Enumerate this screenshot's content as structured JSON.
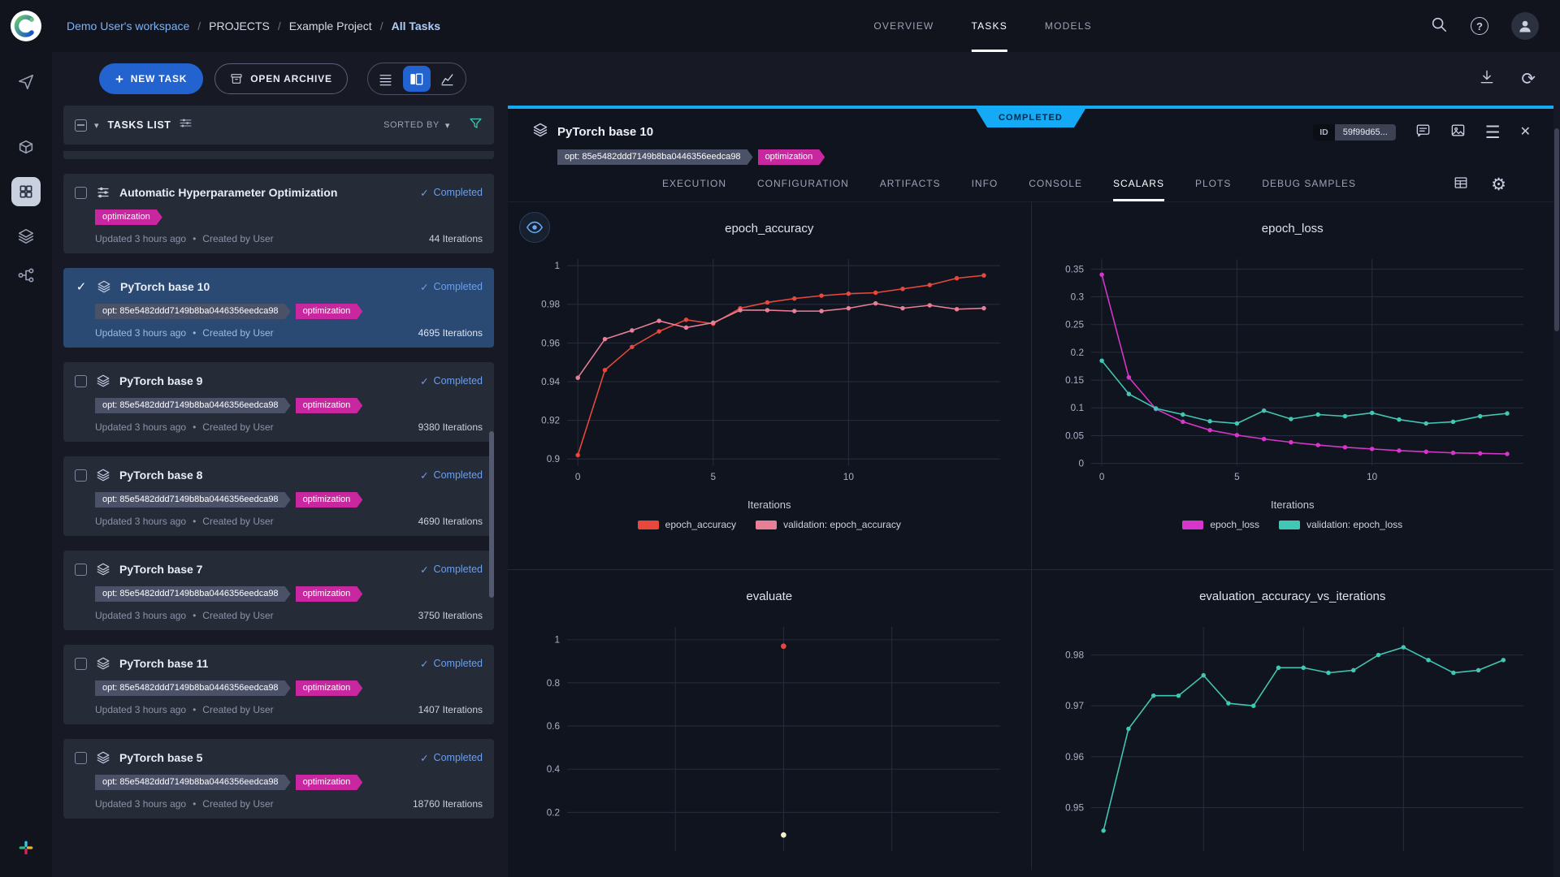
{
  "colors": {
    "accent_blue": "#14aaf5",
    "button_blue": "#2263cf",
    "tag_magenta": "#c9279f",
    "tag_gray": "#4b5166",
    "status_blue": "#6d9ee8",
    "selected_card_bg": "#2a4a74"
  },
  "icons": {
    "plus": "+",
    "caret_down": "▾",
    "check": "✓",
    "bullet": "•",
    "close": "✕",
    "menu": "☰",
    "gear": "⚙",
    "refresh": "⟳",
    "help": "?"
  },
  "topbar": {
    "breadcrumbs": [
      "Demo User's workspace",
      "PROJECTS",
      "Example Project",
      "All Tasks"
    ],
    "tabs": [
      {
        "label": "OVERVIEW",
        "active": false
      },
      {
        "label": "TASKS",
        "active": true
      },
      {
        "label": "MODELS",
        "active": false
      }
    ]
  },
  "toolbar": {
    "new_task": "NEW TASK",
    "open_archive": "OPEN ARCHIVE"
  },
  "tasks_panel": {
    "title": "TASKS LIST",
    "sorted_by": "SORTED BY",
    "tasks": [
      {
        "icon": "tune",
        "title": "Automatic Hyperparameter Optimization",
        "status": "Completed",
        "selected": false,
        "tags": [
          {
            "label": "optimization",
            "color": "#c9279f"
          }
        ],
        "updated": "Updated 3 hours ago",
        "created": "Created by User",
        "iterations": "44 Iterations"
      },
      {
        "icon": "layers",
        "title": "PyTorch base 10",
        "status": "Completed",
        "selected": true,
        "tags": [
          {
            "label": "opt: 85e5482ddd7149b8ba0446356eedca98",
            "color": "#4b5166"
          },
          {
            "label": "optimization",
            "color": "#c9279f"
          }
        ],
        "updated": "Updated 3 hours ago",
        "created": "Created by User",
        "iterations": "4695 Iterations"
      },
      {
        "icon": "layers",
        "title": "PyTorch base 9",
        "status": "Completed",
        "selected": false,
        "tags": [
          {
            "label": "opt: 85e5482ddd7149b8ba0446356eedca98",
            "color": "#4b5166"
          },
          {
            "label": "optimization",
            "color": "#c9279f"
          }
        ],
        "updated": "Updated 3 hours ago",
        "created": "Created by User",
        "iterations": "9380 Iterations"
      },
      {
        "icon": "layers",
        "title": "PyTorch base 8",
        "status": "Completed",
        "selected": false,
        "tags": [
          {
            "label": "opt: 85e5482ddd7149b8ba0446356eedca98",
            "color": "#4b5166"
          },
          {
            "label": "optimization",
            "color": "#c9279f"
          }
        ],
        "updated": "Updated 3 hours ago",
        "created": "Created by User",
        "iterations": "4690 Iterations"
      },
      {
        "icon": "layers",
        "title": "PyTorch base 7",
        "status": "Completed",
        "selected": false,
        "tags": [
          {
            "label": "opt: 85e5482ddd7149b8ba0446356eedca98",
            "color": "#4b5166"
          },
          {
            "label": "optimization",
            "color": "#c9279f"
          }
        ],
        "updated": "Updated 3 hours ago",
        "created": "Created by User",
        "iterations": "3750 Iterations"
      },
      {
        "icon": "layers",
        "title": "PyTorch base 11",
        "status": "Completed",
        "selected": false,
        "tags": [
          {
            "label": "opt: 85e5482ddd7149b8ba0446356eedca98",
            "color": "#4b5166"
          },
          {
            "label": "optimization",
            "color": "#c9279f"
          }
        ],
        "updated": "Updated 3 hours ago",
        "created": "Created by User",
        "iterations": "1407 Iterations"
      },
      {
        "icon": "layers",
        "title": "PyTorch base 5",
        "status": "Completed",
        "selected": false,
        "tags": [
          {
            "label": "opt: 85e5482ddd7149b8ba0446356eedca98",
            "color": "#4b5166"
          },
          {
            "label": "optimization",
            "color": "#c9279f"
          }
        ],
        "updated": "Updated 3 hours ago",
        "created": "Created by User",
        "iterations": "18760 Iterations"
      }
    ]
  },
  "detail": {
    "ribbon": "COMPLETED",
    "title": "PyTorch base 10",
    "tags": [
      {
        "label": "opt: 85e5482ddd7149b8ba0446356eedca98",
        "color": "#4b5166"
      },
      {
        "label": "optimization",
        "color": "#c9279f"
      }
    ],
    "id_label": "ID",
    "id_value": "59f99d65...",
    "tabs": [
      {
        "label": "EXECUTION",
        "active": false
      },
      {
        "label": "CONFIGURATION",
        "active": false
      },
      {
        "label": "ARTIFACTS",
        "active": false
      },
      {
        "label": "INFO",
        "active": false
      },
      {
        "label": "CONSOLE",
        "active": false
      },
      {
        "label": "SCALARS",
        "active": true
      },
      {
        "label": "PLOTS",
        "active": false
      },
      {
        "label": "DEBUG SAMPLES",
        "active": false
      }
    ]
  },
  "chart_data": [
    {
      "type": "line",
      "title": "epoch_accuracy",
      "xlabel": "Iterations",
      "legend": true,
      "x": [
        0,
        1,
        2,
        3,
        4,
        5,
        6,
        7,
        8,
        9,
        10,
        11,
        12,
        13,
        14,
        15
      ],
      "xlim": [
        -0.4,
        15.6
      ],
      "xticks": [
        0,
        5,
        10
      ],
      "ylim": [
        0.8965,
        1.0035
      ],
      "yticks": [
        0.9,
        0.92,
        0.94,
        0.96,
        0.98,
        1
      ],
      "series": [
        {
          "name": "epoch_accuracy",
          "color": "#e8483c",
          "values": [
            0.902,
            0.946,
            0.958,
            0.966,
            0.972,
            0.97,
            0.978,
            0.981,
            0.983,
            0.9845,
            0.9855,
            0.986,
            0.988,
            0.99,
            0.9935,
            0.995
          ]
        },
        {
          "name": "validation: epoch_accuracy",
          "color": "#e87f96",
          "values": [
            0.942,
            0.962,
            0.9665,
            0.9715,
            0.968,
            0.9705,
            0.977,
            0.977,
            0.9765,
            0.9765,
            0.978,
            0.9805,
            0.978,
            0.9795,
            0.9775,
            0.978
          ]
        }
      ]
    },
    {
      "type": "line",
      "title": "epoch_loss",
      "xlabel": "Iterations",
      "legend": true,
      "x": [
        0,
        1,
        2,
        3,
        4,
        5,
        6,
        7,
        8,
        9,
        10,
        11,
        12,
        13,
        14,
        15
      ],
      "xlim": [
        -0.4,
        15.6
      ],
      "xticks": [
        0,
        5,
        10
      ],
      "ylim": [
        -0.004,
        0.368
      ],
      "yticks": [
        0,
        0.05,
        0.1,
        0.15,
        0.2,
        0.25,
        0.3,
        0.35
      ],
      "series": [
        {
          "name": "epoch_loss",
          "color": "#d636c9",
          "values": [
            0.34,
            0.155,
            0.098,
            0.075,
            0.06,
            0.051,
            0.044,
            0.038,
            0.033,
            0.029,
            0.026,
            0.023,
            0.021,
            0.019,
            0.018,
            0.017
          ]
        },
        {
          "name": "validation: epoch_loss",
          "color": "#41c8b4",
          "values": [
            0.185,
            0.125,
            0.099,
            0.088,
            0.076,
            0.072,
            0.095,
            0.08,
            0.088,
            0.085,
            0.091,
            0.079,
            0.072,
            0.075,
            0.085,
            0.09
          ]
        }
      ]
    },
    {
      "type": "scatter",
      "title": "evaluate",
      "legend": false,
      "xtick_labels": false,
      "xlim": [
        0,
        1
      ],
      "xticks": [
        0.25,
        0.5,
        0.75
      ],
      "ylim": [
        0.02,
        1.06
      ],
      "yticks": [
        0.2,
        0.4,
        0.6,
        0.8,
        1
      ],
      "series": [
        {
          "name": "evaluate",
          "color": "#e8483c",
          "points": [
            [
              0.5,
              0.97
            ]
          ]
        },
        {
          "name": "",
          "color": "#f4f0cf",
          "points": [
            [
              0.5,
              0.095
            ]
          ]
        }
      ]
    },
    {
      "type": "line",
      "title": "evaluation_accuracy_vs_iterations",
      "legend": false,
      "xtick_labels": false,
      "x": [
        0,
        1,
        2,
        3,
        4,
        5,
        6,
        7,
        8,
        9,
        10,
        11,
        12,
        13,
        14,
        15,
        16
      ],
      "xlim": [
        -0.5,
        16.8
      ],
      "xticks": [
        4,
        8,
        12
      ],
      "ylim": [
        0.9415,
        0.9855
      ],
      "yticks": [
        0.95,
        0.96,
        0.97,
        0.98
      ],
      "series": [
        {
          "name": "evaluation_accuracy",
          "color": "#41c8b4",
          "values": [
            0.9455,
            0.9655,
            0.972,
            0.972,
            0.976,
            0.9705,
            0.97,
            0.9775,
            0.9775,
            0.9765,
            0.977,
            0.98,
            0.9815,
            0.979,
            0.9765,
            0.977,
            0.979
          ]
        }
      ]
    }
  ]
}
